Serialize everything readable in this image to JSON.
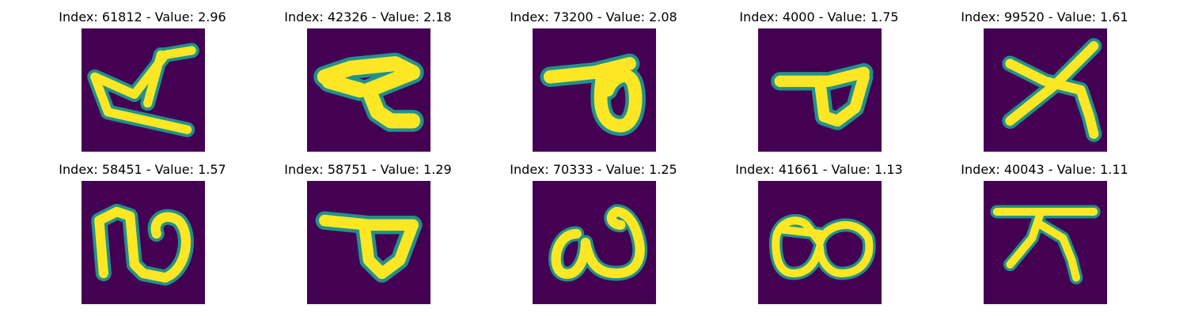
{
  "colors": {
    "background": "#440154",
    "stroke_edge": "#21918c",
    "stroke_mid": "#5ec962",
    "stroke_core": "#fde725"
  },
  "panels": [
    {
      "title": "Index: 61812 - Value: 2.96",
      "glyph": "a-like loop letter"
    },
    {
      "title": "Index: 42326 - Value: 2.18",
      "glyph": "horizontal bar with zigzag tail"
    },
    {
      "title": "Index: 73200 - Value: 2.08",
      "glyph": "bar with loop"
    },
    {
      "title": "Index: 4000 - Value: 1.75",
      "glyph": "bar with triangular loop"
    },
    {
      "title": "Index: 99520 - Value: 1.61",
      "glyph": "crossed x shape"
    },
    {
      "title": "Index: 58451 - Value: 1.57",
      "glyph": "double arch"
    },
    {
      "title": "Index: 58751 - Value: 1.29",
      "glyph": "bar with triangular loop"
    },
    {
      "title": "Index: 70333 - Value: 1.25",
      "glyph": "w-like shape"
    },
    {
      "title": "Index: 41661 - Value: 1.13",
      "glyph": "double loop"
    },
    {
      "title": "Index: 40043 - Value: 1.11",
      "glyph": "bar with two legs"
    }
  ]
}
